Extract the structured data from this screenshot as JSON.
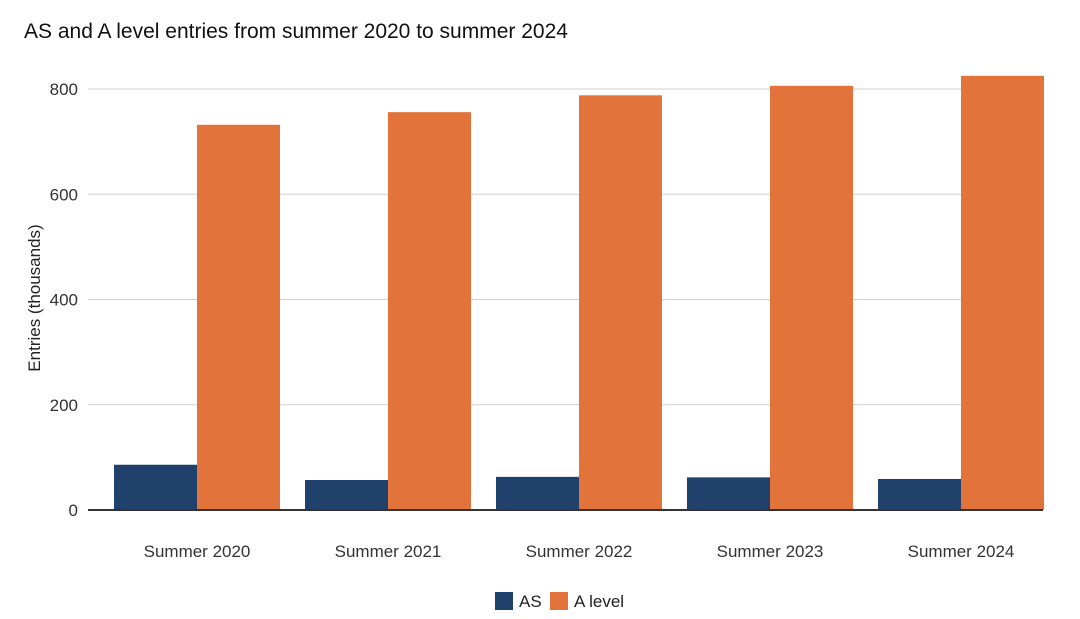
{
  "chart_data": {
    "type": "bar",
    "subtitle": "AS and A level entries from summer 2020 to summer 2024",
    "ylabel": "Entries (thousands)",
    "xlabel": "",
    "categories": [
      "Summer 2020",
      "Summer 2021",
      "Summer 2022",
      "Summer 2023",
      "Summer 2024"
    ],
    "series": [
      {
        "name": "AS",
        "color": "#1f416b",
        "values": [
          86,
          57,
          63,
          62,
          59
        ]
      },
      {
        "name": "A level",
        "color": "#e2733a",
        "values": [
          732,
          756,
          788,
          806,
          825
        ]
      }
    ],
    "ylim": [
      0,
      800
    ],
    "yticks": [
      0,
      200,
      400,
      600,
      800
    ],
    "grid": true,
    "legend_position": "bottom"
  }
}
